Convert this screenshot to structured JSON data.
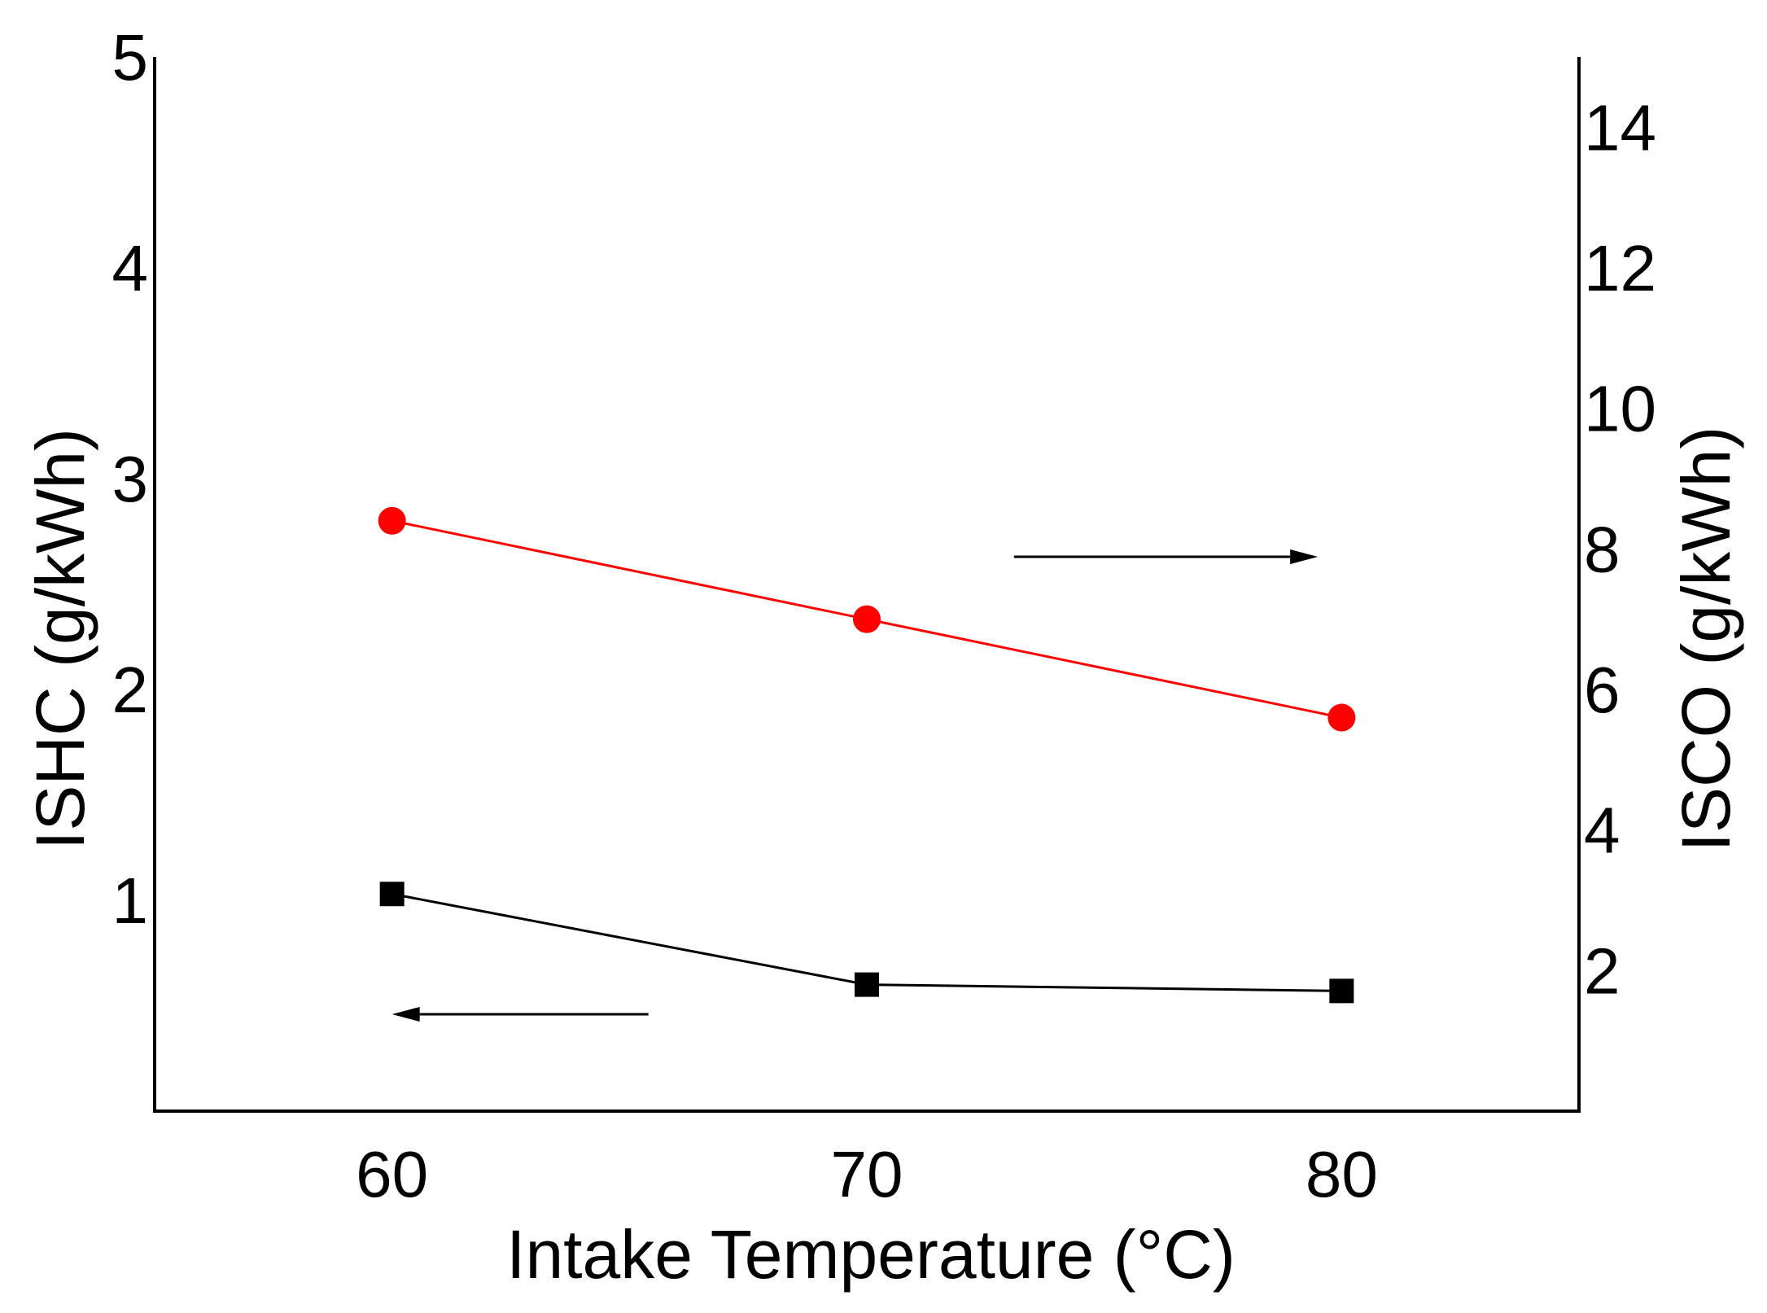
{
  "chart_data": {
    "type": "line",
    "title": "",
    "xlabel": "Intake Temperature (°C)",
    "ylabel_left": "ISHC (g/kWh)",
    "ylabel_right": "ISCO (g/kWh)",
    "xlim": [
      55,
      85
    ],
    "ylim_left": [
      0,
      5
    ],
    "ylim_right": [
      0,
      15
    ],
    "x_ticks": [
      "60",
      "70",
      "80"
    ],
    "x_tick_values": [
      60,
      70,
      80
    ],
    "y_left_ticks": [
      "1",
      "2",
      "3",
      "4",
      "5"
    ],
    "y_left_tick_values": [
      1,
      2,
      3,
      4,
      5
    ],
    "y_right_ticks": [
      "2",
      "4",
      "6",
      "8",
      "10",
      "12",
      "14"
    ],
    "y_right_tick_values": [
      2,
      4,
      6,
      8,
      10,
      12,
      14
    ],
    "grid": false,
    "series": [
      {
        "name": "ISHC",
        "axis": "left",
        "marker": "square",
        "color": "#000000",
        "x": [
          60,
          70,
          80
        ],
        "values": [
          1.03,
          0.6,
          0.57
        ]
      },
      {
        "name": "ISCO",
        "axis": "right",
        "marker": "circle",
        "color": "#ff0000",
        "x": [
          60,
          70,
          80
        ],
        "values": [
          8.4,
          7.0,
          5.6
        ]
      }
    ],
    "annotations": [
      {
        "type": "arrow",
        "direction": "left",
        "points_to_axis": "left",
        "series": "ISHC"
      },
      {
        "type": "arrow",
        "direction": "right",
        "points_to_axis": "right",
        "series": "ISCO"
      }
    ]
  }
}
